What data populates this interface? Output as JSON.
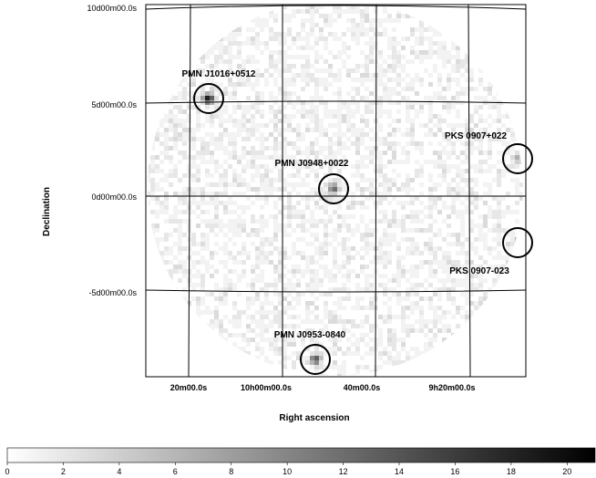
{
  "chart_data": {
    "type": "heatmap",
    "title": "",
    "xlabel": "Right ascension",
    "ylabel": "Declination",
    "x_tick_labels": [
      "20m00.0s",
      "10h00m00.0s",
      "40m00.0s",
      "9h20m00.0s"
    ],
    "y_tick_labels": [
      "10d00m00.0s",
      "5d00m00.0s",
      "0d00m00.0s",
      "-5d00m00.0s"
    ],
    "colorbar": {
      "min": 0,
      "max": 21,
      "ticks": [
        0,
        2,
        4,
        6,
        8,
        10,
        12,
        14,
        16,
        18,
        20
      ],
      "tick_labels": [
        "0",
        "2",
        "4",
        "6",
        "8",
        "10",
        "12",
        "14",
        "16",
        "18",
        "20"
      ],
      "colormap": "white-to-black"
    },
    "sources": [
      {
        "name": "PMN J1016+0512",
        "peak": 20
      },
      {
        "name": "PMN J0948+0022",
        "peak": 13
      },
      {
        "name": "PKS 0907+022",
        "peak": 6
      },
      {
        "name": "PKS 0907-023",
        "peak": 6
      },
      {
        "name": "PMN J0953-0840",
        "peak": 14
      }
    ]
  },
  "colors": {
    "background": "#ffffff",
    "grid": "#000000",
    "circle": "#000000"
  }
}
